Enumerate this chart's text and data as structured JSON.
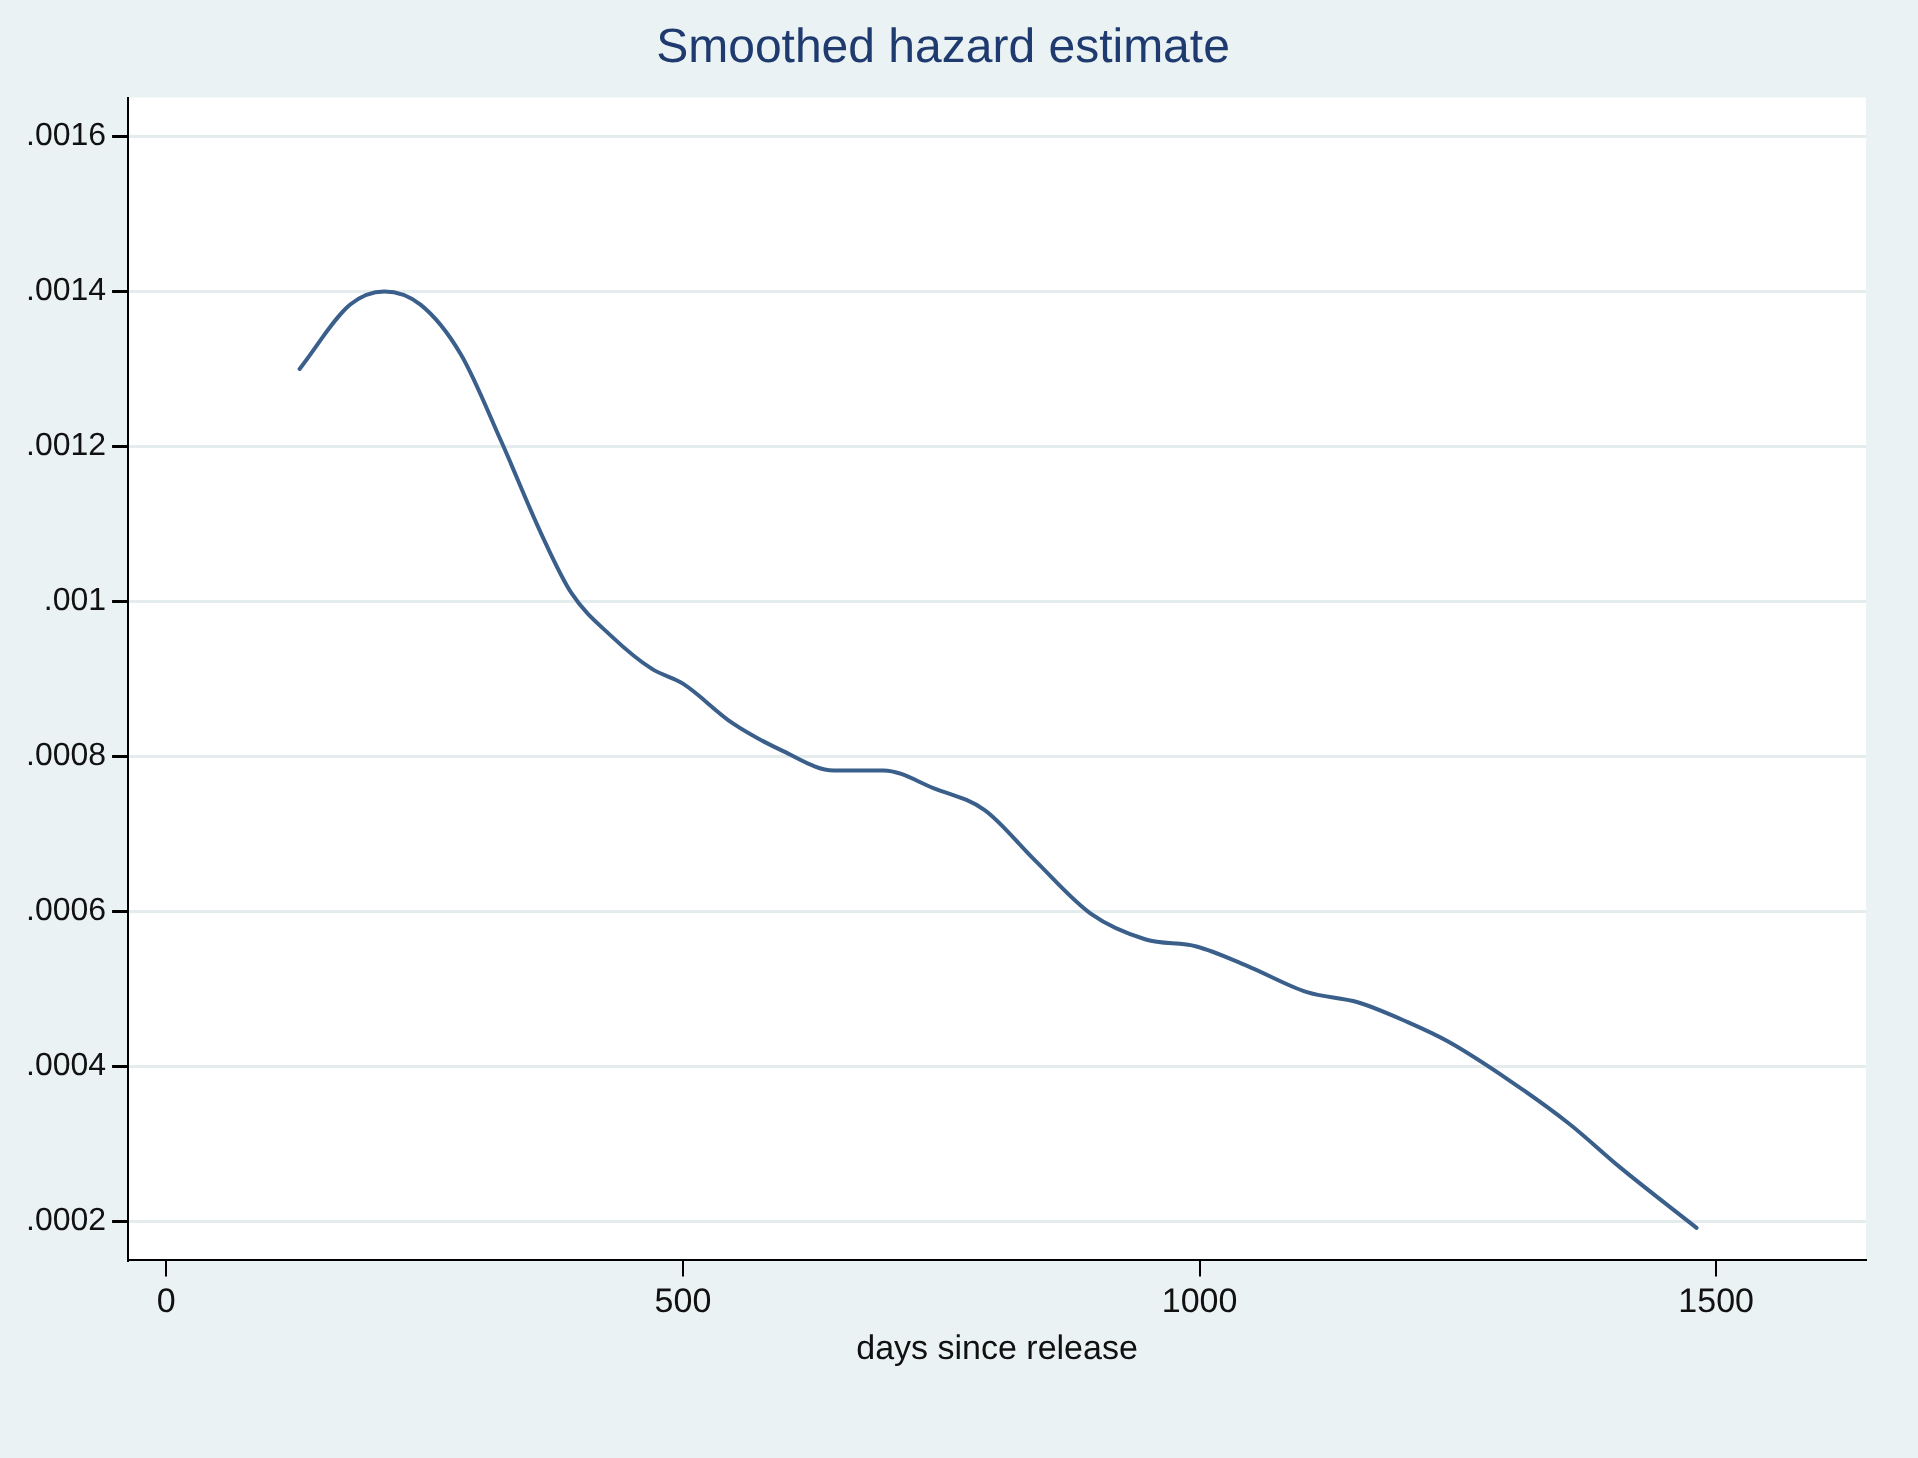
{
  "chart_data": {
    "type": "line",
    "title": "Smoothed hazard estimate",
    "xlabel": "days since release",
    "series": [
      {
        "color": "#3a5f8b",
        "x": [
          129,
          178,
          211,
          246,
          285,
          324,
          363,
          392,
          431,
          470,
          500,
          548,
          597,
          646,
          694,
          743,
          792,
          840,
          895,
          948,
          997,
          1046,
          1104,
          1153,
          1202,
          1241,
          1300,
          1358,
          1407,
          1481
        ],
        "values": [
          0.0013,
          0.001383,
          0.0014,
          0.001383,
          0.001319,
          0.001207,
          0.001087,
          0.001011,
          0.000955,
          0.000913,
          0.000894,
          0.000843,
          0.000807,
          0.000782,
          0.000782,
          0.000759,
          0.000731,
          0.000667,
          0.000597,
          0.000564,
          0.000555,
          0.00053,
          0.000496,
          0.000483,
          0.000457,
          0.000432,
          0.000382,
          0.000326,
          0.00027,
          0.000192
        ]
      }
    ],
    "xlim": [
      -37,
      1645
    ],
    "xticks": [
      0,
      500,
      1000,
      1500
    ],
    "ylim": [
      0.00015,
      0.00165
    ],
    "yticks": [
      {
        "value": 0.0002,
        "label": ".0002"
      },
      {
        "value": 0.0004,
        "label": ".0004"
      },
      {
        "value": 0.0006,
        "label": ".0006"
      },
      {
        "value": 0.0008,
        "label": ".0008"
      },
      {
        "value": 0.001,
        "label": ".001"
      },
      {
        "value": 0.0012,
        "label": ".0012"
      },
      {
        "value": 0.0014,
        "label": ".0014"
      },
      {
        "value": 0.0016,
        "label": ".0016"
      }
    ],
    "grid": "y",
    "legend": false,
    "marker": "none",
    "line_style": "solid"
  }
}
